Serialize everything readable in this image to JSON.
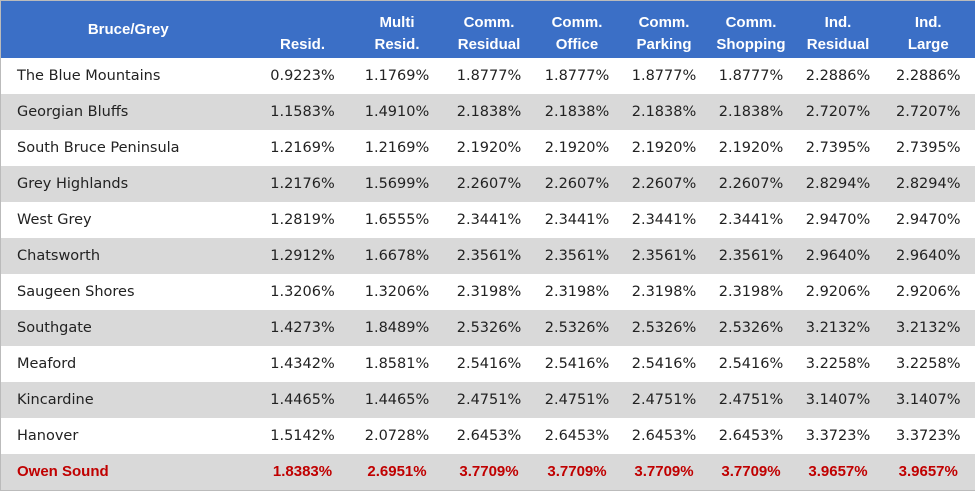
{
  "table": {
    "header": [
      "Bruce/Grey",
      "Resid.",
      "Multi\nResid.",
      "Comm.\nResidual",
      "Comm.\nOffice",
      "Comm.\nParking",
      "Comm.\nShopping",
      "Ind.\nResidual",
      "Ind.\nLarge"
    ],
    "rows": [
      [
        "The Blue Mountains",
        "0.9223%",
        "1.1769%",
        "1.8777%",
        "1.8777%",
        "1.8777%",
        "1.8777%",
        "2.2886%",
        "2.2886%"
      ],
      [
        "Georgian Bluffs",
        "1.1583%",
        "1.4910%",
        "2.1838%",
        "2.1838%",
        "2.1838%",
        "2.1838%",
        "2.7207%",
        "2.7207%"
      ],
      [
        "South Bruce Peninsula",
        "1.2169%",
        "1.2169%",
        "2.1920%",
        "2.1920%",
        "2.1920%",
        "2.1920%",
        "2.7395%",
        "2.7395%"
      ],
      [
        "Grey Highlands",
        "1.2176%",
        "1.5699%",
        "2.2607%",
        "2.2607%",
        "2.2607%",
        "2.2607%",
        "2.8294%",
        "2.8294%"
      ],
      [
        "West Grey",
        "1.2819%",
        "1.6555%",
        "2.3441%",
        "2.3441%",
        "2.3441%",
        "2.3441%",
        "2.9470%",
        "2.9470%"
      ],
      [
        "Chatsworth",
        "1.2912%",
        "1.6678%",
        "2.3561%",
        "2.3561%",
        "2.3561%",
        "2.3561%",
        "2.9640%",
        "2.9640%"
      ],
      [
        "Saugeen Shores",
        "1.3206%",
        "1.3206%",
        "2.3198%",
        "2.3198%",
        "2.3198%",
        "2.3198%",
        "2.9206%",
        "2.9206%"
      ],
      [
        "Southgate",
        "1.4273%",
        "1.8489%",
        "2.5326%",
        "2.5326%",
        "2.5326%",
        "2.5326%",
        "3.2132%",
        "3.2132%"
      ],
      [
        "Meaford",
        "1.4342%",
        "1.8581%",
        "2.5416%",
        "2.5416%",
        "2.5416%",
        "2.5416%",
        "3.2258%",
        "3.2258%"
      ],
      [
        "Kincardine",
        "1.4465%",
        "1.4465%",
        "2.4751%",
        "2.4751%",
        "2.4751%",
        "2.4751%",
        "3.1407%",
        "3.1407%"
      ],
      [
        "Hanover",
        "1.5142%",
        "2.0728%",
        "2.6453%",
        "2.6453%",
        "2.6453%",
        "2.6453%",
        "3.3723%",
        "3.3723%"
      ],
      [
        "Owen Sound",
        "1.8383%",
        "2.6951%",
        "3.7709%",
        "3.7709%",
        "3.7709%",
        "3.7709%",
        "3.9657%",
        "3.9657%"
      ]
    ]
  }
}
